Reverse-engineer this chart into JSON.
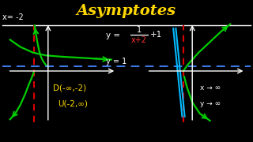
{
  "bg_color": "#000000",
  "title": "Asymptotes",
  "title_color": "#FFD700",
  "title_fontsize": 14,
  "label_x_eq": "x= -2",
  "label_x_color": "#FFFFFF",
  "label_y1": "y = 1",
  "label_y1_color": "#FFFFFF",
  "fraction_num": "1",
  "fraction_den": "x+2",
  "fraction_den_color": "#FF3333",
  "plus1": "+1",
  "domain_label": "D(-∞,-2)",
  "union_label": "U(-2,∞)",
  "domain_color": "#FFD700",
  "arrow_x": "x → ∞",
  "arrow_y": "y → ∞",
  "arrow_color": "#FFFFFF",
  "green_color": "#00CC00",
  "red_dash_color": "#DD0000",
  "blue_dash_color": "#4488FF",
  "cyan_color": "#00BBFF",
  "white_color": "#FFFFFF"
}
